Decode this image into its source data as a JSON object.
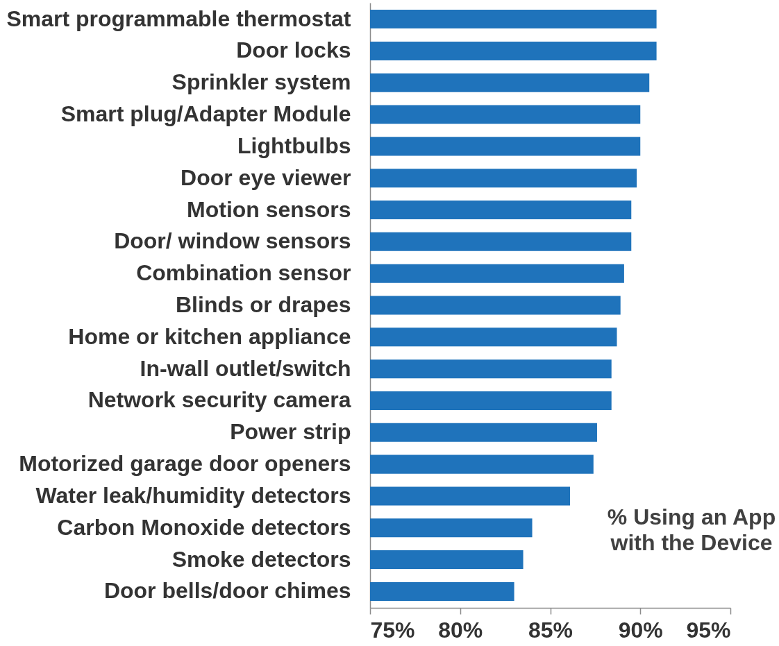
{
  "chart_data": {
    "type": "bar",
    "orientation": "horizontal",
    "categories": [
      "Smart programmable thermostat",
      "Door locks",
      "Sprinkler system",
      "Smart plug/Adapter Module",
      "Lightbulbs",
      "Door eye viewer",
      "Motion sensors",
      "Door/ window sensors",
      "Combination sensor",
      "Blinds or drapes",
      "Home or kitchen appliance",
      "In-wall outlet/switch",
      "Network security camera",
      "Power strip",
      "Motorized garage door openers",
      "Water leak/humidity detectors",
      "Carbon Monoxide detectors",
      "Smoke detectors",
      "Door bells/door chimes"
    ],
    "values": [
      90.9,
      90.9,
      90.5,
      90.0,
      90.0,
      89.8,
      89.5,
      89.5,
      89.1,
      88.9,
      88.7,
      88.4,
      88.4,
      87.6,
      87.4,
      86.1,
      84.0,
      83.5,
      83.0
    ],
    "color": "#1f73bb",
    "xlim": [
      75,
      95
    ],
    "xticks": [
      {
        "value": 75,
        "label": "75%"
      },
      {
        "value": 80,
        "label": "80%"
      },
      {
        "value": 85,
        "label": "85%"
      },
      {
        "value": 90,
        "label": "90%"
      },
      {
        "value": 95,
        "label": "95%"
      }
    ],
    "annotations": [
      "% Using an App\nwith the Device"
    ]
  }
}
